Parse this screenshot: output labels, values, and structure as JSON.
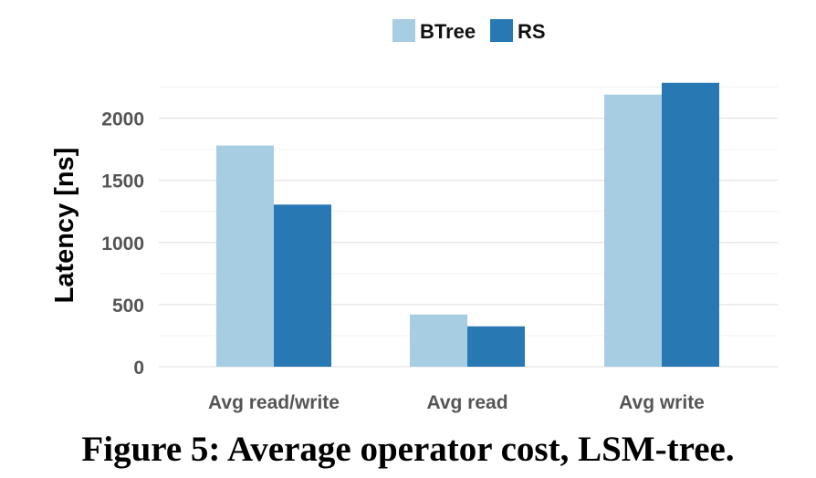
{
  "chart_data": {
    "type": "bar",
    "categories": [
      "Avg read/write",
      "Avg read",
      "Avg write"
    ],
    "series": [
      {
        "name": "BTree",
        "color": "#a6cde2",
        "values": [
          1780,
          420,
          2190
        ]
      },
      {
        "name": "RS",
        "color": "#2878b4",
        "values": [
          1305,
          325,
          2285
        ]
      }
    ],
    "ylabel": "Latency [ns]",
    "xlabel": "",
    "ylim": [
      0,
      2250
    ],
    "yticks": [
      0,
      500,
      1000,
      1500,
      2000
    ],
    "grid": true,
    "legend": "top-center"
  },
  "caption": "Figure 5: Average operator cost, LSM-tree."
}
